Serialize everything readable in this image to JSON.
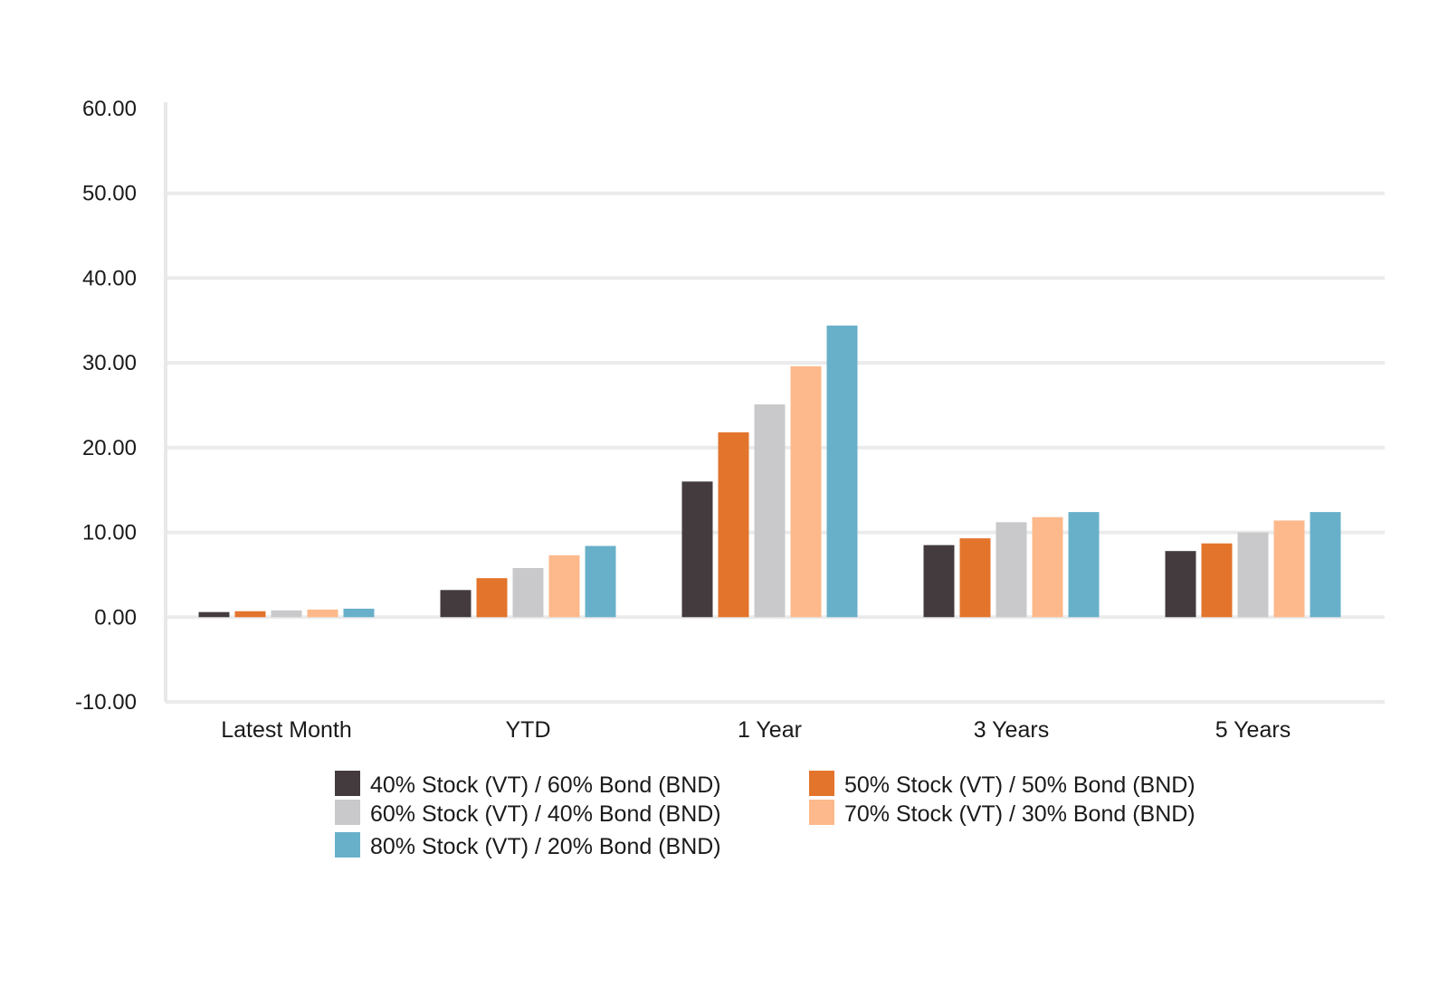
{
  "chart_data": {
    "type": "bar",
    "title": "",
    "xlabel": "",
    "ylabel": "",
    "ylim": [
      -10,
      60
    ],
    "yticks": [
      "60.00",
      "50.00",
      "40.00",
      "30.00",
      "20.00",
      "10.00",
      "0.00",
      "-10.00"
    ],
    "ytick_values": [
      60,
      50,
      40,
      30,
      20,
      10,
      0,
      -10
    ],
    "grid": true,
    "legend_position": "bottom",
    "categories": [
      "Latest Month",
      "YTD",
      "1 Year",
      "3 Years",
      "5 Years"
    ],
    "series": [
      {
        "name": "40% Stock (VT) / 60% Bond (BND)",
        "color": "#433b3d",
        "values": [
          0.6,
          3.2,
          16.0,
          8.5,
          7.8
        ]
      },
      {
        "name": "50% Stock (VT) / 50% Bond (BND)",
        "color": "#e3742c",
        "values": [
          0.7,
          4.6,
          21.8,
          9.3,
          8.7
        ]
      },
      {
        "name": "60% Stock (VT) / 40% Bond (BND)",
        "color": "#c9c9cb",
        "values": [
          0.8,
          5.8,
          25.1,
          11.2,
          10.0
        ]
      },
      {
        "name": "70% Stock (VT) / 30% Bond (BND)",
        "color": "#fdb98b",
        "values": [
          0.9,
          7.3,
          29.6,
          11.8,
          11.4
        ]
      },
      {
        "name": "80% Stock (VT) / 20% Bond (BND)",
        "color": "#68b0c9",
        "values": [
          1.0,
          8.4,
          34.4,
          12.4,
          12.4
        ]
      }
    ]
  }
}
